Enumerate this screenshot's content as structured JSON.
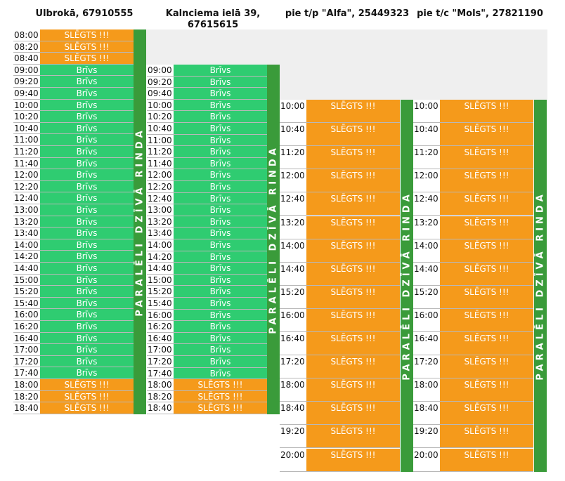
{
  "locations": [
    {
      "name": "Ulbrokā, 67910555"
    },
    {
      "name": "Kalnciema ielā 39,\n67615615"
    },
    {
      "name": "pie t/p \"Alfa\", 25449323"
    },
    {
      "name": "pie t/c \"Mols\", 27821190"
    }
  ],
  "parallel_label": "PARALĒLI DZĪVĀ RINDA",
  "free_label": "Brīvs",
  "closed_label": "SLĒGTS !!!",
  "col1": [
    {
      "time": "08:00",
      "status": "SLĒGTS !!!",
      "closed": true
    },
    {
      "time": "08:20",
      "status": "SLĒGTS !!!",
      "closed": true
    },
    {
      "time": "08:40",
      "status": "SLĒGTS !!!",
      "closed": true
    },
    {
      "time": "09:00",
      "status": "Brīvs"
    },
    {
      "time": "09:20",
      "status": "Brīvs"
    },
    {
      "time": "09:40",
      "status": "Brīvs"
    },
    {
      "time": "10:00",
      "status": "Brīvs"
    },
    {
      "time": "10:20",
      "status": "Brīvs"
    },
    {
      "time": "10:40",
      "status": "Brīvs"
    },
    {
      "time": "11:00",
      "status": "Brīvs"
    },
    {
      "time": "11:20",
      "status": "Brīvs"
    },
    {
      "time": "11:40",
      "status": "Brīvs"
    },
    {
      "time": "12:00",
      "status": "Brīvs"
    },
    {
      "time": "12:20",
      "status": "Brīvs"
    },
    {
      "time": "12:40",
      "status": "Brīvs"
    },
    {
      "time": "13:00",
      "status": "Brīvs"
    },
    {
      "time": "13:20",
      "status": "Brīvs"
    },
    {
      "time": "13:40",
      "status": "Brīvs"
    },
    {
      "time": "14:00",
      "status": "Brīvs"
    },
    {
      "time": "14:20",
      "status": "Brīvs"
    },
    {
      "time": "14:40",
      "status": "Brīvs"
    },
    {
      "time": "15:00",
      "status": "Brīvs"
    },
    {
      "time": "15:20",
      "status": "Brīvs"
    },
    {
      "time": "15:40",
      "status": "Brīvs"
    },
    {
      "time": "16:00",
      "status": "Brīvs"
    },
    {
      "time": "16:20",
      "status": "Brīvs"
    },
    {
      "time": "16:40",
      "status": "Brīvs"
    },
    {
      "time": "17:00",
      "status": "Brīvs"
    },
    {
      "time": "17:20",
      "status": "Brīvs"
    },
    {
      "time": "17:40",
      "status": "Brīvs"
    },
    {
      "time": "18:00",
      "status": "SLĒGTS !!!",
      "closed": true
    },
    {
      "time": "18:20",
      "status": "SLĒGTS !!!",
      "closed": true
    },
    {
      "time": "18:40",
      "status": "SLĒGTS !!!",
      "closed": true
    }
  ],
  "col2": [
    {
      "time": "09:00",
      "status": "Brīvs"
    },
    {
      "time": "09:20",
      "status": "Brīvs"
    },
    {
      "time": "09:40",
      "status": "Brīvs"
    },
    {
      "time": "10:00",
      "status": "Brīvs"
    },
    {
      "time": "10:20",
      "status": "Brīvs"
    },
    {
      "time": "10:40",
      "status": "Brīvs"
    },
    {
      "time": "11:00",
      "status": "Brīvs"
    },
    {
      "time": "11:20",
      "status": "Brīvs"
    },
    {
      "time": "11:40",
      "status": "Brīvs"
    },
    {
      "time": "12:00",
      "status": "Brīvs"
    },
    {
      "time": "12:20",
      "status": "Brīvs"
    },
    {
      "time": "12:40",
      "status": "Brīvs"
    },
    {
      "time": "13:00",
      "status": "Brīvs"
    },
    {
      "time": "13:20",
      "status": "Brīvs"
    },
    {
      "time": "13:40",
      "status": "Brīvs"
    },
    {
      "time": "14:00",
      "status": "Brīvs"
    },
    {
      "time": "14:20",
      "status": "Brīvs"
    },
    {
      "time": "14:40",
      "status": "Brīvs"
    },
    {
      "time": "15:00",
      "status": "Brīvs"
    },
    {
      "time": "15:20",
      "status": "Brīvs"
    },
    {
      "time": "15:40",
      "status": "Brīvs"
    },
    {
      "time": "16:00",
      "status": "Brīvs"
    },
    {
      "time": "16:20",
      "status": "Brīvs"
    },
    {
      "time": "16:40",
      "status": "Brīvs"
    },
    {
      "time": "17:00",
      "status": "Brīvs"
    },
    {
      "time": "17:20",
      "status": "Brīvs"
    },
    {
      "time": "17:40",
      "status": "Brīvs"
    },
    {
      "time": "18:00",
      "status": "SLĒGTS !!!",
      "closed": true
    },
    {
      "time": "18:20",
      "status": "SLĒGTS !!!",
      "closed": true
    },
    {
      "time": "18:40",
      "status": "SLĒGTS !!!",
      "closed": true
    }
  ],
  "col3": [
    {
      "time": "10:00",
      "status": "SLĒGTS !!!"
    },
    {
      "time": "10:40",
      "status": "SLĒGTS !!!"
    },
    {
      "time": "11:20",
      "status": "SLĒGTS !!!"
    },
    {
      "time": "12:00",
      "status": "SLĒGTS !!!"
    },
    {
      "time": "12:40",
      "status": "SLĒGTS !!!"
    },
    {
      "time": "13:20",
      "status": "SLĒGTS !!!"
    },
    {
      "time": "14:00",
      "status": "SLĒGTS !!!"
    },
    {
      "time": "14:40",
      "status": "SLĒGTS !!!"
    },
    {
      "time": "15:20",
      "status": "SLĒGTS !!!"
    },
    {
      "time": "16:00",
      "status": "SLĒGTS !!!"
    },
    {
      "time": "16:40",
      "status": "SLĒGTS !!!"
    },
    {
      "time": "17:20",
      "status": "SLĒGTS !!!"
    },
    {
      "time": "18:00",
      "status": "SLĒGTS !!!"
    },
    {
      "time": "18:40",
      "status": "SLĒGTS !!!"
    },
    {
      "time": "19:20",
      "status": "SLĒGTS !!!"
    },
    {
      "time": "20:00",
      "status": "SLĒGTS !!!"
    }
  ],
  "col4": [
    {
      "time": "10:00",
      "status": "SLĒGTS !!!"
    },
    {
      "time": "10:40",
      "status": "SLĒGTS !!!"
    },
    {
      "time": "11:20",
      "status": "SLĒGTS !!!"
    },
    {
      "time": "12:00",
      "status": "SLĒGTS !!!"
    },
    {
      "time": "12:40",
      "status": "SLĒGTS !!!"
    },
    {
      "time": "13:20",
      "status": "SLĒGTS !!!"
    },
    {
      "time": "14:00",
      "status": "SLĒGTS !!!"
    },
    {
      "time": "14:40",
      "status": "SLĒGTS !!!"
    },
    {
      "time": "15:20",
      "status": "SLĒGTS !!!"
    },
    {
      "time": "16:00",
      "status": "SLĒGTS !!!"
    },
    {
      "time": "16:40",
      "status": "SLĒGTS !!!"
    },
    {
      "time": "17:20",
      "status": "SLĒGTS !!!"
    },
    {
      "time": "18:00",
      "status": "SLĒGTS !!!"
    },
    {
      "time": "18:40",
      "status": "SLĒGTS !!!"
    },
    {
      "time": "19:20",
      "status": "SLĒGTS !!!"
    },
    {
      "time": "20:00",
      "status": "SLĒGTS !!!"
    }
  ],
  "colors": {
    "free": "#2fcc71",
    "closed": "#f59a1b",
    "bar": "#3a9b3a",
    "grey": "#efefef"
  }
}
